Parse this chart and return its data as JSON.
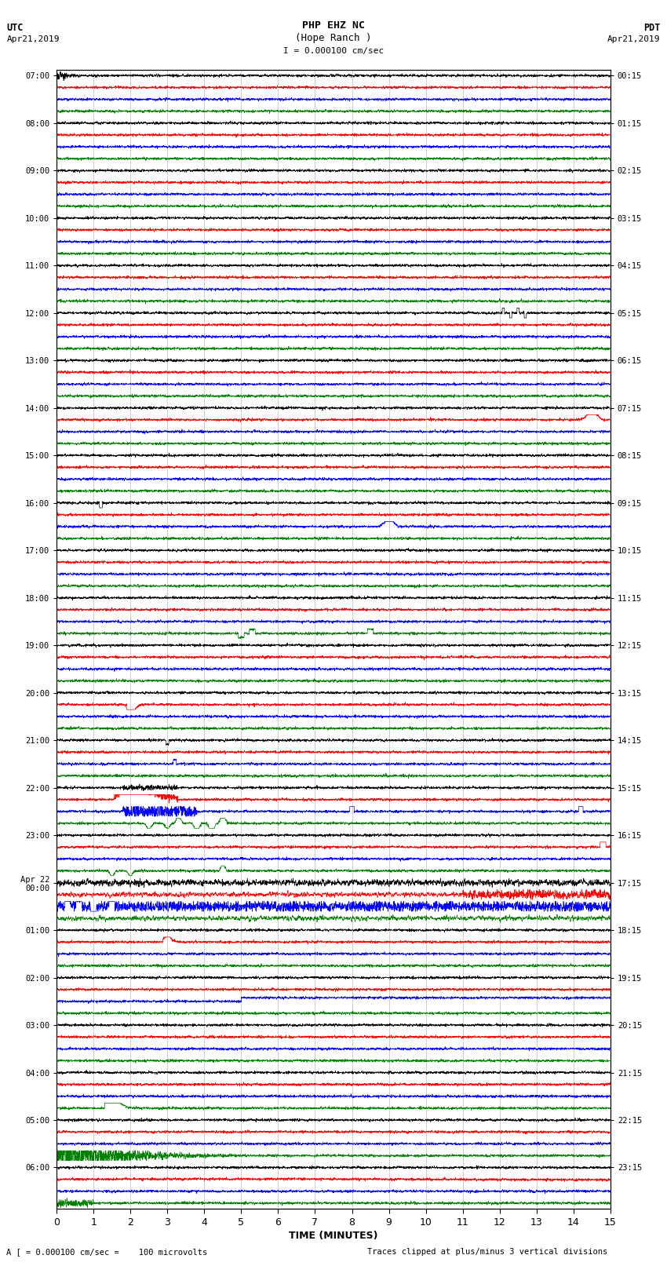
{
  "title_line1": "PHP EHZ NC",
  "title_line2": "(Hope Ranch )",
  "scale_label": "I = 0.000100 cm/sec",
  "left_header_line1": "UTC",
  "left_header_line2": "Apr21,2019",
  "right_header_line1": "PDT",
  "right_header_line2": "Apr21,2019",
  "bottom_note_left": "A [ = 0.000100 cm/sec =    100 microvolts",
  "bottom_note_right": "Traces clipped at plus/minus 3 vertical divisions",
  "xlabel": "TIME (MINUTES)",
  "time_min": 0,
  "time_max": 15,
  "x_ticks": [
    0,
    1,
    2,
    3,
    4,
    5,
    6,
    7,
    8,
    9,
    10,
    11,
    12,
    13,
    14,
    15
  ],
  "colors": [
    "black",
    "red",
    "blue",
    "green"
  ],
  "bg_color": "white",
  "seed": 42,
  "hour_labels_left": [
    "07:00",
    "08:00",
    "09:00",
    "10:00",
    "11:00",
    "12:00",
    "13:00",
    "14:00",
    "15:00",
    "16:00",
    "17:00",
    "18:00",
    "19:00",
    "20:00",
    "21:00",
    "22:00",
    "23:00",
    "Apr 22\n00:00",
    "01:00",
    "02:00",
    "03:00",
    "04:00",
    "05:00",
    "06:00"
  ],
  "hour_labels_right": [
    "00:15",
    "01:15",
    "02:15",
    "03:15",
    "04:15",
    "05:15",
    "06:15",
    "07:15",
    "08:15",
    "09:15",
    "10:15",
    "11:15",
    "12:15",
    "13:15",
    "14:15",
    "15:15",
    "16:15",
    "17:15",
    "18:15",
    "19:15",
    "20:15",
    "21:15",
    "22:15",
    "23:15"
  ]
}
